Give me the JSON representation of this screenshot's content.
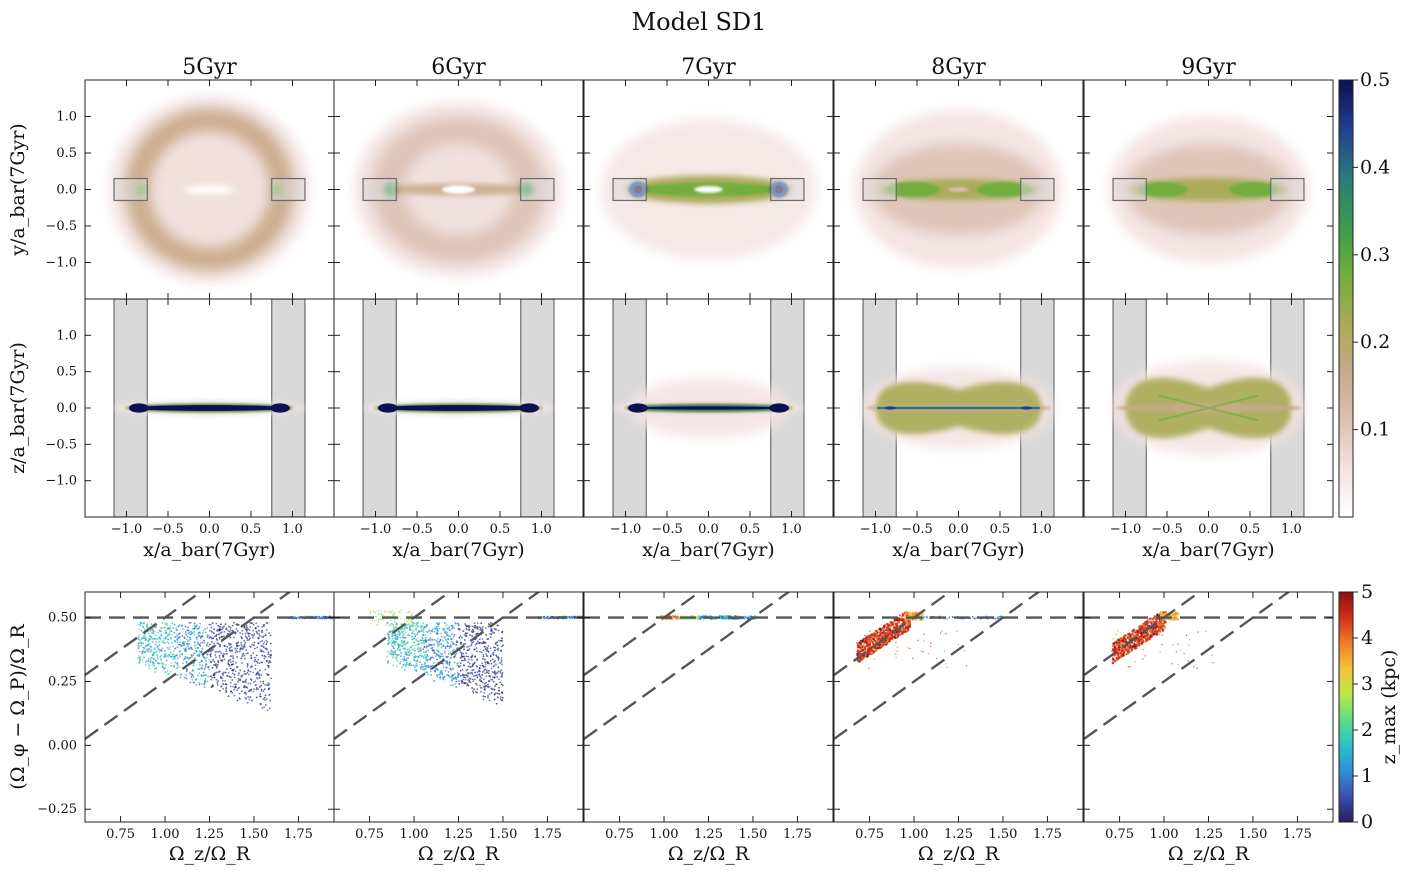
{
  "figure": {
    "title": "Model SD1",
    "colors": {
      "density_cmap": [
        "#ffffff",
        "#f3e3e2",
        "#dcc0b0",
        "#c8a98a",
        "#a8aa55",
        "#6fae3c",
        "#3b9a4c",
        "#2b7a7a",
        "#1f3f8f",
        "#0b1150"
      ],
      "zmax_cmap": [
        "#2a1d5c",
        "#3a4fb0",
        "#2f8fd8",
        "#29c1c9",
        "#5fdc88",
        "#b8e84a",
        "#f4c43a",
        "#f07d2a",
        "#cf2f1a",
        "#8c0f10"
      ],
      "bar_box_fill": "#d9d9d9",
      "bar_box_stroke": "#6b6b6b",
      "dashed_line": "#555555"
    }
  },
  "chart_data": [
    {
      "type": "heatmap",
      "row": "face-on",
      "panel_titles": [
        "5Gyr",
        "6Gyr",
        "7Gyr",
        "8Gyr",
        "9Gyr"
      ],
      "xlabel": "x/a_bar(7Gyr)",
      "ylabel": "y/a_bar(7Gyr)",
      "xlim": [
        -1.5,
        1.5
      ],
      "ylim": [
        -1.5,
        1.5
      ],
      "xticks": [
        -1.0,
        -0.5,
        0.0,
        0.5,
        1.0
      ],
      "yticks": [
        -1.0,
        -0.5,
        0.0,
        0.5,
        1.0
      ],
      "ytick_labels": [
        "−1.0",
        "−0.5",
        "0.0",
        "0.5",
        "1.0"
      ],
      "bar_region_boxes_x": [
        [
          -1.15,
          -0.75
        ],
        [
          0.75,
          1.15
        ]
      ],
      "bar_region_box_y": [
        -0.15,
        0.15
      ]
    },
    {
      "type": "heatmap",
      "row": "edge-on",
      "panel_titles": [
        "5Gyr",
        "6Gyr",
        "7Gyr",
        "8Gyr",
        "9Gyr"
      ],
      "xlabel": "x/a_bar(7Gyr)",
      "ylabel": "z/a_bar(7Gyr)",
      "xlim": [
        -1.5,
        1.5
      ],
      "ylim": [
        -1.5,
        1.5
      ],
      "xticks": [
        -1.0,
        -0.5,
        0.0,
        0.5,
        1.0
      ],
      "xtick_labels": [
        "−1.0",
        "−0.5",
        "0.0",
        "0.5",
        "1.0"
      ],
      "yticks": [
        -1.0,
        -0.5,
        0.0,
        0.5,
        1.0
      ],
      "ytick_labels": [
        "−1.0",
        "−0.5",
        "0.0",
        "0.5",
        "1.0"
      ],
      "bar_region_boxes_x": [
        [
          -1.15,
          -0.75
        ],
        [
          0.75,
          1.15
        ]
      ]
    },
    {
      "type": "colorbar",
      "row": "density",
      "range": [
        0.0,
        0.5
      ],
      "ticks": [
        0.1,
        0.2,
        0.3,
        0.4,
        0.5
      ],
      "tick_labels": [
        "0.1",
        "0.2",
        "0.3",
        "0.4",
        "0.5"
      ]
    },
    {
      "type": "scatter",
      "row": "frequency",
      "xlabel": "Ω_z/Ω_R",
      "ylabel": "(Ω_φ − Ω_P)/Ω_R",
      "xlim": [
        0.55,
        1.95
      ],
      "ylim": [
        -0.3,
        0.6
      ],
      "xticks": [
        0.75,
        1.0,
        1.25,
        1.5,
        1.75
      ],
      "xtick_labels": [
        "0.75",
        "1.00",
        "1.25",
        "1.50",
        "1.75"
      ],
      "yticks": [
        -0.25,
        0.0,
        0.25,
        0.5
      ],
      "ytick_labels": [
        "−0.25",
        "0.00",
        "0.25",
        "0.50"
      ],
      "resonance_lines": [
        {
          "kind": "horizontal",
          "y": 0.5
        },
        {
          "kind": "diagonal",
          "slope": 0.5,
          "intercept": 0.0
        },
        {
          "kind": "diagonal",
          "slope": 0.5,
          "intercept": -0.25
        }
      ]
    },
    {
      "type": "colorbar",
      "row": "frequency",
      "label": "z_max (kpc)",
      "range": [
        0,
        5
      ],
      "ticks": [
        0,
        1,
        2,
        3,
        4,
        5
      ],
      "tick_labels": [
        "0",
        "1",
        "2",
        "3",
        "4",
        "5"
      ]
    }
  ]
}
